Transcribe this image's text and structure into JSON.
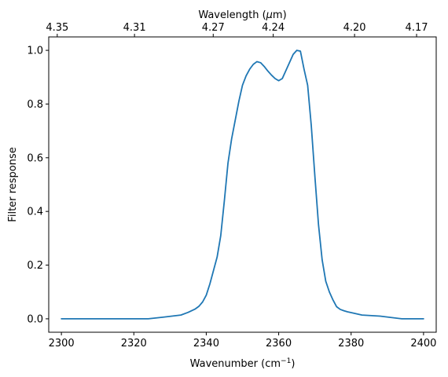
{
  "chart_data": {
    "type": "line",
    "title": "",
    "xlabel": "Wavenumber (cm",
    "xlabel_sup": "−1",
    "xlabel_end": ")",
    "ylabel": "Filter response",
    "x2label": "Wavelength (",
    "x2label_mu": "μ",
    "x2label_end": "m)",
    "xlim": [
      2296.5,
      2403.5
    ],
    "ylim": [
      -0.05,
      1.05
    ],
    "grid": false,
    "line_color": "#1f77b4",
    "x_ticks": [
      2300,
      2320,
      2340,
      2360,
      2380,
      2400
    ],
    "x_tick_labels": [
      "2300",
      "2320",
      "2340",
      "2360",
      "2380",
      "2400"
    ],
    "y_ticks": [
      0.0,
      0.2,
      0.4,
      0.6,
      0.8,
      1.0
    ],
    "y_tick_labels": [
      "0.0",
      "0.2",
      "0.4",
      "0.6",
      "0.8",
      "1.0"
    ],
    "top_ticks": [
      {
        "label": "4.35",
        "wavelength": 4.35
      },
      {
        "label": "4.31",
        "wavelength": 4.31
      },
      {
        "label": "4.27",
        "wavelength": 4.27
      },
      {
        "label": "4.24",
        "wavelength": 4.24
      },
      {
        "label": "4.20",
        "wavelength": 4.2
      },
      {
        "label": "4.17",
        "wavelength": 4.17
      }
    ],
    "series": [
      {
        "x": [
          2300,
          2310,
          2320,
          2324,
          2328,
          2333,
          2335,
          2337,
          2338,
          2339,
          2340,
          2341,
          2342,
          2343,
          2344,
          2345,
          2346,
          2347,
          2348,
          2349,
          2350,
          2351,
          2352,
          2353,
          2354,
          2355,
          2356,
          2357,
          2358,
          2359,
          2360,
          2361,
          2362,
          2363,
          2364,
          2365,
          2366,
          2367,
          2368,
          2369,
          2370,
          2371,
          2372,
          2373,
          2374,
          2375,
          2376,
          2377,
          2378,
          2379,
          2380,
          2383,
          2388,
          2394,
          2400
        ],
        "y": [
          0.0,
          0.0,
          0.0,
          0.0,
          0.006,
          0.014,
          0.024,
          0.037,
          0.047,
          0.063,
          0.088,
          0.13,
          0.18,
          0.23,
          0.31,
          0.44,
          0.58,
          0.67,
          0.74,
          0.81,
          0.87,
          0.905,
          0.93,
          0.948,
          0.958,
          0.954,
          0.94,
          0.923,
          0.908,
          0.895,
          0.887,
          0.895,
          0.925,
          0.955,
          0.985,
          1.0,
          0.997,
          0.93,
          0.87,
          0.72,
          0.53,
          0.35,
          0.22,
          0.14,
          0.1,
          0.07,
          0.045,
          0.035,
          0.03,
          0.026,
          0.023,
          0.014,
          0.01,
          0.0,
          0.0
        ]
      }
    ]
  }
}
